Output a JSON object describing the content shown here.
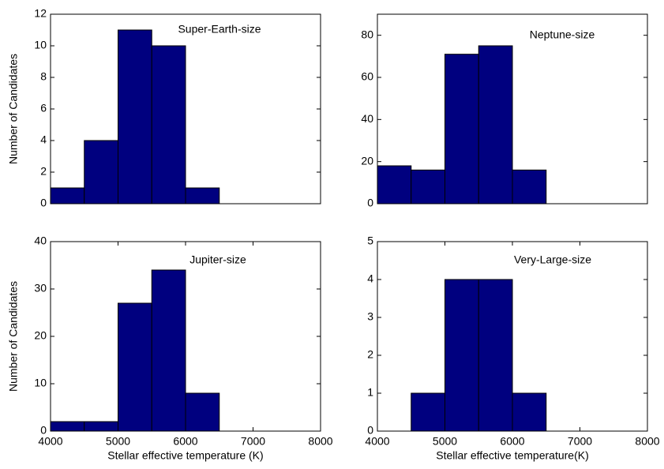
{
  "chart_data": [
    {
      "type": "histogram",
      "annotation": "Super-Earth-size",
      "ylabel": "Number of Candidates",
      "bins": [
        4000,
        4500,
        5000,
        5500,
        6000,
        6500
      ],
      "values": [
        1,
        4,
        11,
        10,
        1
      ],
      "color": "#00007f",
      "xlim": [
        4000,
        8000
      ],
      "ylim": [
        0,
        12
      ],
      "yticks": [
        0,
        2,
        4,
        6,
        8,
        10,
        12
      ]
    },
    {
      "type": "histogram",
      "annotation": "Neptune-size",
      "bins": [
        4000,
        4500,
        5000,
        5500,
        6000,
        6500
      ],
      "values": [
        18,
        16,
        71,
        75,
        16
      ],
      "color": "#00007f",
      "xlim": [
        4000,
        8000
      ],
      "ylim": [
        0,
        90
      ],
      "yticks": [
        0,
        20,
        40,
        60,
        80
      ]
    },
    {
      "type": "histogram",
      "annotation": "Jupiter-size",
      "ylabel": "Number of Candidates",
      "xlabel": "Stellar effective temperature (K)",
      "bins": [
        4000,
        4500,
        5000,
        5500,
        6000,
        6500
      ],
      "values": [
        2,
        2,
        27,
        34,
        8
      ],
      "color": "#00007f",
      "xlim": [
        4000,
        8000
      ],
      "xticks": [
        4000,
        5000,
        6000,
        7000,
        8000
      ],
      "ylim": [
        0,
        40
      ],
      "yticks": [
        0,
        10,
        20,
        30,
        40
      ]
    },
    {
      "type": "histogram",
      "annotation": "Very-Large-size",
      "xlabel": "Stellar effective temperature(K)",
      "bins": [
        4500,
        5000,
        5500,
        6000,
        6500
      ],
      "values": [
        1,
        4,
        4,
        1
      ],
      "color": "#00007f",
      "xlim": [
        4000,
        8000
      ],
      "xticks": [
        4000,
        5000,
        6000,
        7000,
        8000
      ],
      "ylim": [
        0,
        5
      ],
      "yticks": [
        0,
        1,
        2,
        3,
        4,
        5
      ]
    }
  ]
}
